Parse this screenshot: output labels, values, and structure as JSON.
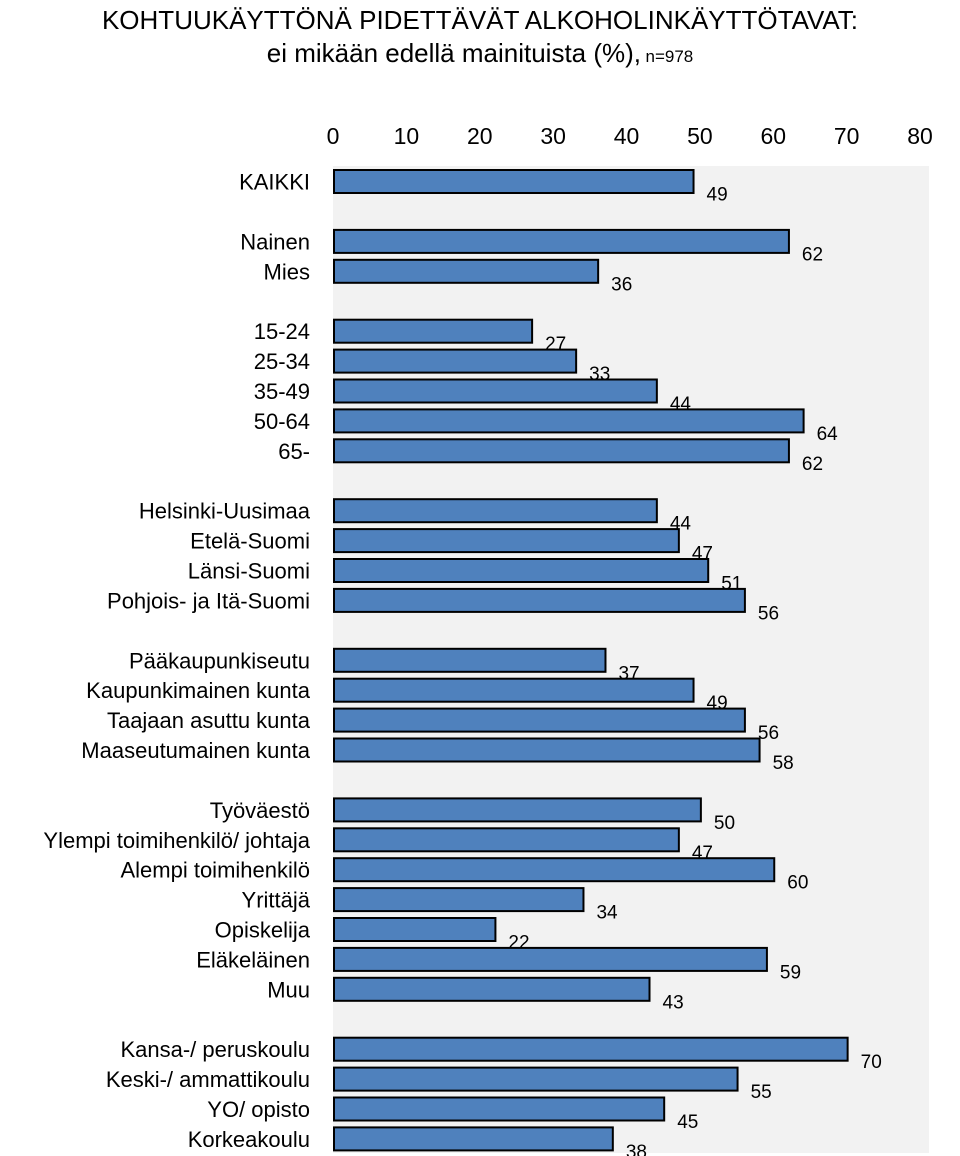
{
  "chart_data": {
    "type": "bar",
    "orientation": "horizontal",
    "title": "KOHTUUKÄYTTÖNÄ PIDETTÄVÄT ALKOHOLINKÄYTTÖTAVAT:",
    "subtitle": "ei mikään edellä mainituista (%),",
    "n_label": "n=978",
    "xlim": [
      0,
      80
    ],
    "xticks": [
      "0",
      "10",
      "20",
      "30",
      "40",
      "50",
      "60",
      "70",
      "80"
    ],
    "axis_position": "top",
    "bar_color": "#4f81bd",
    "plot_background": "#f2f2f2",
    "groups": [
      {
        "categories": [
          "KAIKKI"
        ],
        "values": [
          49
        ]
      },
      {
        "categories": [
          "Nainen",
          "Mies"
        ],
        "values": [
          62,
          36
        ]
      },
      {
        "categories": [
          "15-24",
          "25-34",
          "35-49",
          "50-64",
          "65-"
        ],
        "values": [
          27,
          33,
          44,
          64,
          62
        ]
      },
      {
        "categories": [
          "Helsinki-Uusimaa",
          "Etelä-Suomi",
          "Länsi-Suomi",
          "Pohjois- ja Itä-Suomi"
        ],
        "values": [
          44,
          47,
          51,
          56
        ]
      },
      {
        "categories": [
          "Pääkaupunkiseutu",
          "Kaupunkimainen kunta",
          "Taajaan asuttu kunta",
          "Maaseutumainen kunta"
        ],
        "values": [
          37,
          49,
          56,
          58
        ]
      },
      {
        "categories": [
          "Työväestö",
          "Ylempi toimihenkilö/ johtaja",
          "Alempi toimihenkilö",
          "Yrittäjä",
          "Opiskelija",
          "Eläkeläinen",
          "Muu"
        ],
        "values": [
          50,
          47,
          60,
          34,
          22,
          59,
          43
        ]
      },
      {
        "categories": [
          "Kansa-/ peruskoulu",
          "Keski-/ ammattikoulu",
          "YO/ opisto",
          "Korkeakoulu"
        ],
        "values": [
          70,
          55,
          45,
          38
        ]
      }
    ]
  }
}
